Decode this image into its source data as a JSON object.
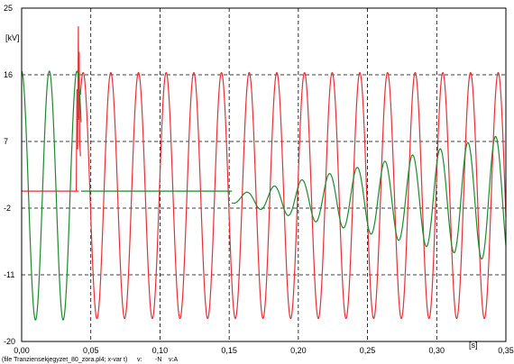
{
  "chart_data": {
    "type": "line",
    "title": "",
    "xlabel": "[s]",
    "ylabel": "[kV]",
    "xlim": [
      0,
      0.35
    ],
    "ylim": [
      -20,
      25
    ],
    "grid": true,
    "x_ticks": [
      0.0,
      0.05,
      0.1,
      0.15,
      0.2,
      0.25,
      0.3,
      0.35
    ],
    "x_tick_labels": [
      "0,00",
      "0,05",
      "0,10",
      "0,15",
      "0,20",
      "0,25",
      "0,30",
      "0,35"
    ],
    "y_ticks": [
      25,
      16,
      7,
      -2,
      -11,
      -20
    ],
    "y_tick_labels": [
      "25",
      "16",
      "7",
      "-2",
      "-11",
      "-20"
    ],
    "legend_file": "(file Tranziensekjegyzet_80_zora.pl4; x-var t)",
    "series": [
      {
        "name": "v:",
        "suffix": "-N",
        "color": "#e8303a",
        "segments": [
          {
            "t0": 0.0,
            "t1": 0.0413,
            "kind": "const",
            "value": 0.3
          },
          {
            "t0": 0.0395,
            "t1": 0.0425,
            "kind": "spike",
            "points": [
              [
                0.0395,
                0.3
              ],
              [
                0.04,
                14.0
              ],
              [
                0.0405,
                6.0
              ],
              [
                0.041,
                22.5
              ],
              [
                0.0413,
                10.0
              ],
              [
                0.0416,
                19.0
              ],
              [
                0.042,
                7.0
              ],
              [
                0.0425,
                5.0
              ]
            ]
          },
          {
            "t0": 0.0425,
            "t1": 0.35,
            "kind": "sine",
            "amplitude": 16.6,
            "frequency": 50,
            "phase_deg": 10,
            "offset": -0.3
          }
        ]
      },
      {
        "name": "v:A",
        "suffix": "",
        "color": "#1e8a2e",
        "segments": [
          {
            "t0": 0.0,
            "t1": 0.043,
            "kind": "sine",
            "amplitude": 16.8,
            "frequency": 50,
            "phase_deg": 90,
            "offset": -0.3
          },
          {
            "t0": 0.043,
            "t1": 0.152,
            "kind": "const",
            "value": 0.3
          },
          {
            "t0": 0.152,
            "t1": 0.35,
            "kind": "grow_sine",
            "amp_start": 0.5,
            "amp_end": 8.8,
            "frequency": 50,
            "phase_deg": 45,
            "offset": -0.8
          }
        ]
      }
    ]
  }
}
